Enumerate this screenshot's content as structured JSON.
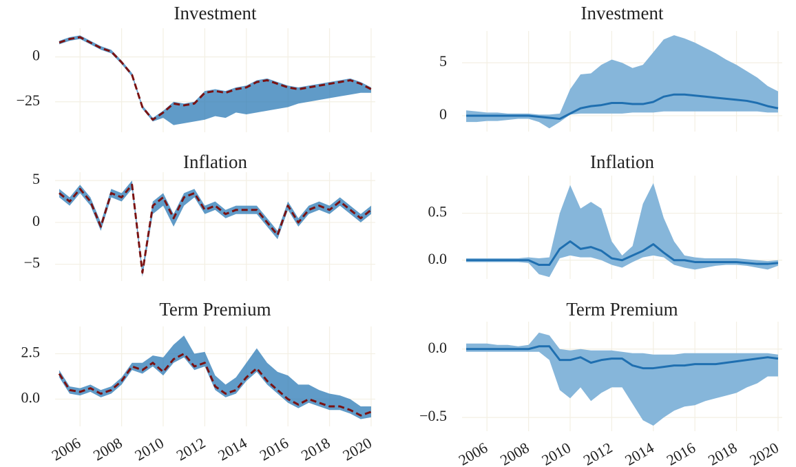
{
  "chart_data": [
    {
      "type": "line",
      "title": "Investment",
      "x": [
        2005,
        2005.5,
        2006,
        2006.5,
        2007,
        2007.5,
        2008,
        2008.5,
        2009,
        2009.5,
        2010,
        2010.5,
        2011,
        2011.5,
        2012,
        2012.5,
        2013,
        2013.5,
        2014,
        2014.5,
        2015,
        2015.5,
        2016,
        2016.5,
        2017,
        2017.5,
        2018,
        2018.5,
        2019,
        2019.5,
        2020
      ],
      "xlim": [
        2004.8,
        2020.2
      ],
      "xticks": [
        2006,
        2008,
        2010,
        2012,
        2014,
        2016,
        2018,
        2020
      ],
      "ylim": [
        -42,
        16
      ],
      "yticks": [
        0,
        {
          "value": -25,
          "label": "−25"
        }
      ],
      "grid": true,
      "band": {
        "color": "#2b79b6",
        "lower": [
          7,
          9,
          10,
          7,
          4,
          2,
          -4,
          -11,
          -29,
          -36,
          -34,
          -38,
          -37,
          -36,
          -35,
          -33,
          -34,
          -31,
          -32,
          -31,
          -30,
          -29,
          -28,
          -26,
          -25,
          -24,
          -23,
          -22,
          -21,
          -20,
          -20
        ],
        "upper": [
          9,
          11,
          12,
          9,
          6,
          4,
          -2,
          -9,
          -27,
          -34,
          -30,
          -25,
          -26,
          -25,
          -19,
          -18,
          -19,
          -17,
          -16,
          -13,
          -12,
          -14,
          -16,
          -17,
          -16,
          -15,
          -14,
          -13,
          -12,
          -14,
          -17
        ]
      },
      "series": [
        {
          "color": "#7a1212",
          "dashed": true,
          "values": [
            8,
            10,
            11,
            8,
            5,
            3,
            -3,
            -10,
            -28,
            -35,
            -31,
            -26,
            -27,
            -26,
            -20,
            -19,
            -20,
            -18,
            -17,
            -14,
            -13,
            -15,
            -17,
            -18,
            -17,
            -16,
            -15,
            -14,
            -13,
            -15,
            -18
          ]
        }
      ]
    },
    {
      "type": "line",
      "title": "Investment",
      "x": [
        2005,
        2005.5,
        2006,
        2006.5,
        2007,
        2007.5,
        2008,
        2008.5,
        2009,
        2009.5,
        2010,
        2010.5,
        2011,
        2011.5,
        2012,
        2012.5,
        2013,
        2013.5,
        2014,
        2014.5,
        2015,
        2015.5,
        2016,
        2016.5,
        2017,
        2017.5,
        2018,
        2018.5,
        2019,
        2019.5,
        2020
      ],
      "xlim": [
        2004.8,
        2020.2
      ],
      "xticks": [
        2006,
        2008,
        2010,
        2012,
        2014,
        2016,
        2018,
        2020
      ],
      "ylim": [
        -1.5,
        8
      ],
      "yticks": [
        5,
        0
      ],
      "grid": true,
      "band": {
        "color": "#86b6da",
        "lower": [
          -0.6,
          -0.6,
          -0.5,
          -0.5,
          -0.4,
          -0.3,
          -0.3,
          -0.6,
          -1.2,
          -0.6,
          0.1,
          0.2,
          0.2,
          0.2,
          0.2,
          0.2,
          0.3,
          0.3,
          0.3,
          0.4,
          0.4,
          0.4,
          0.4,
          0.4,
          0.4,
          0.4,
          0.4,
          0.4,
          0.4,
          0.3,
          0.3
        ],
        "upper": [
          0.5,
          0.4,
          0.3,
          0.3,
          0.2,
          0.2,
          0.2,
          0.1,
          0.1,
          0.2,
          2.5,
          3.9,
          4.0,
          4.8,
          5.3,
          5.0,
          4.5,
          4.8,
          6.0,
          7.2,
          7.6,
          7.3,
          6.9,
          6.4,
          5.9,
          5.3,
          4.8,
          4.2,
          3.6,
          2.8,
          2.3
        ]
      },
      "series": [
        {
          "color": "#1f6fb0",
          "values": [
            0,
            0,
            0,
            0,
            0,
            0,
            0,
            -0.1,
            -0.2,
            -0.3,
            0.2,
            0.7,
            0.9,
            1.0,
            1.2,
            1.2,
            1.1,
            1.1,
            1.3,
            1.8,
            2.0,
            2.0,
            1.9,
            1.8,
            1.7,
            1.6,
            1.5,
            1.4,
            1.2,
            0.9,
            0.7
          ]
        }
      ]
    },
    {
      "type": "line",
      "title": "Inflation",
      "x": [
        2005,
        2005.5,
        2006,
        2006.5,
        2007,
        2007.5,
        2008,
        2008.5,
        2009,
        2009.5,
        2010,
        2010.5,
        2011,
        2011.5,
        2012,
        2012.5,
        2013,
        2013.5,
        2014,
        2014.5,
        2015,
        2015.5,
        2016,
        2016.5,
        2017,
        2017.5,
        2018,
        2018.5,
        2019,
        2019.5,
        2020
      ],
      "xlim": [
        2004.8,
        2020.2
      ],
      "xticks": [
        2006,
        2008,
        2010,
        2012,
        2014,
        2016,
        2018,
        2020
      ],
      "ylim": [
        -7,
        6
      ],
      "yticks": [
        5,
        0,
        {
          "value": -5,
          "label": "−5"
        }
      ],
      "grid": true,
      "band": {
        "color": "#2b79b6",
        "lower": [
          3,
          2,
          3.5,
          2,
          -1,
          3,
          2.5,
          4,
          -6.5,
          1,
          2,
          -0.5,
          2,
          3,
          1,
          1.5,
          0.5,
          1,
          1,
          1,
          -0.5,
          -2,
          1.5,
          -0.5,
          1,
          1.5,
          1,
          2,
          1,
          0,
          1
        ],
        "upper": [
          4,
          3,
          4.5,
          3,
          0,
          4,
          3.5,
          5,
          -5.5,
          2.5,
          3.5,
          1,
          3.5,
          4,
          2,
          2.5,
          1.5,
          2,
          2,
          2,
          0.5,
          -1,
          2.5,
          0.5,
          2,
          2.5,
          2,
          3,
          2,
          1,
          2
        ]
      },
      "series": [
        {
          "color": "#7a1212",
          "dashed": true,
          "values": [
            3.5,
            2.5,
            4,
            2.5,
            -0.5,
            3.5,
            3,
            4.5,
            -6,
            2,
            3,
            0.5,
            3,
            3.5,
            1.5,
            2,
            1,
            1.5,
            1.5,
            1.5,
            0,
            -1.5,
            2,
            0,
            1.5,
            2,
            1.5,
            2.5,
            1.5,
            0.5,
            1.5
          ]
        }
      ]
    },
    {
      "type": "line",
      "title": "Inflation",
      "x": [
        2005,
        2005.5,
        2006,
        2006.5,
        2007,
        2007.5,
        2008,
        2008.5,
        2009,
        2009.5,
        2010,
        2010.5,
        2011,
        2011.5,
        2012,
        2012.5,
        2013,
        2013.5,
        2014,
        2014.5,
        2015,
        2015.5,
        2016,
        2016.5,
        2017,
        2017.5,
        2018,
        2018.5,
        2019,
        2019.5,
        2020
      ],
      "xlim": [
        2004.8,
        2020.2
      ],
      "xticks": [
        2006,
        2008,
        2010,
        2012,
        2014,
        2016,
        2018,
        2020
      ],
      "ylim": [
        -0.2,
        0.9
      ],
      "yticks": [
        0.5,
        {
          "value": 0,
          "label": "0.0"
        }
      ],
      "grid": true,
      "band": {
        "color": "#86b6da",
        "lower": [
          -0.02,
          -0.02,
          -0.02,
          -0.02,
          -0.02,
          -0.02,
          -0.03,
          -0.15,
          -0.18,
          0.02,
          0.05,
          0.03,
          0.03,
          0,
          -0.05,
          -0.08,
          -0.02,
          0.03,
          0.05,
          0.03,
          -0.05,
          -0.08,
          -0.1,
          -0.08,
          -0.06,
          -0.05,
          -0.05,
          -0.06,
          -0.08,
          -0.1,
          -0.06
        ],
        "upper": [
          0.02,
          0.02,
          0.02,
          0.02,
          0.02,
          0.02,
          0.03,
          0.02,
          0.03,
          0.5,
          0.8,
          0.55,
          0.62,
          0.55,
          0.2,
          0.05,
          0.15,
          0.6,
          0.82,
          0.45,
          0.2,
          0.05,
          0.03,
          0.02,
          0.02,
          0.02,
          0.02,
          0.01,
          0,
          -0.01,
          0
        ]
      },
      "series": [
        {
          "color": "#1f6fb0",
          "values": [
            0,
            0,
            0,
            0,
            0,
            0,
            0,
            -0.05,
            -0.05,
            0.12,
            0.2,
            0.12,
            0.14,
            0.1,
            0.02,
            0,
            0.05,
            0.1,
            0.17,
            0.08,
            0,
            0,
            -0.02,
            -0.02,
            -0.02,
            -0.02,
            -0.02,
            -0.03,
            -0.04,
            -0.04,
            -0.03
          ]
        }
      ]
    },
    {
      "type": "line",
      "title": "Term Premium",
      "x": [
        2005,
        2005.5,
        2006,
        2006.5,
        2007,
        2007.5,
        2008,
        2008.5,
        2009,
        2009.5,
        2010,
        2010.5,
        2011,
        2011.5,
        2012,
        2012.5,
        2013,
        2013.5,
        2014,
        2014.5,
        2015,
        2015.5,
        2016,
        2016.5,
        2017,
        2017.5,
        2018,
        2018.5,
        2019,
        2019.5,
        2020
      ],
      "xlim": [
        2004.8,
        2020.2
      ],
      "xticks": [
        2006,
        2008,
        2010,
        2012,
        2014,
        2016,
        2018,
        2020
      ],
      "ylim": [
        -1.5,
        4
      ],
      "yticks": [
        2.5,
        {
          "value": 0,
          "label": "0.0"
        }
      ],
      "grid": true,
      "band": {
        "color": "#2b79b6",
        "lower": [
          1.2,
          0.3,
          0.2,
          0.4,
          0.1,
          0.3,
          0.8,
          1.6,
          1.4,
          1.8,
          1.3,
          2,
          2.3,
          1.6,
          1.8,
          0.5,
          0.1,
          0.3,
          1,
          1.5,
          0.8,
          0.3,
          -0.2,
          -0.5,
          -0.2,
          -0.4,
          -0.6,
          -0.6,
          -0.8,
          -1.1,
          -1
        ],
        "upper": [
          1.6,
          0.7,
          0.6,
          0.8,
          0.5,
          0.7,
          1.2,
          2,
          2,
          2.4,
          2.3,
          3,
          3.5,
          2.5,
          2.6,
          1.3,
          0.8,
          1.2,
          2,
          2.8,
          2,
          1.5,
          1.3,
          0.8,
          0.8,
          0.5,
          0.3,
          0.2,
          0,
          -0.4,
          -0.4
        ]
      },
      "series": [
        {
          "color": "#7a1212",
          "dashed": true,
          "values": [
            1.4,
            0.5,
            0.4,
            0.6,
            0.3,
            0.5,
            1,
            1.8,
            1.6,
            2,
            1.5,
            2.2,
            2.5,
            1.8,
            2,
            0.7,
            0.3,
            0.5,
            1.2,
            1.7,
            1,
            0.5,
            0,
            -0.3,
            0,
            -0.2,
            -0.4,
            -0.4,
            -0.6,
            -0.9,
            -0.7
          ]
        }
      ]
    },
    {
      "type": "line",
      "title": "Term Premium",
      "x": [
        2005,
        2005.5,
        2006,
        2006.5,
        2007,
        2007.5,
        2008,
        2008.5,
        2009,
        2009.5,
        2010,
        2010.5,
        2011,
        2011.5,
        2012,
        2012.5,
        2013,
        2013.5,
        2014,
        2014.5,
        2015,
        2015.5,
        2016,
        2016.5,
        2017,
        2017.5,
        2018,
        2018.5,
        2019,
        2019.5,
        2020
      ],
      "xlim": [
        2004.8,
        2020.2
      ],
      "xticks": [
        2006,
        2008,
        2010,
        2012,
        2014,
        2016,
        2018,
        2020
      ],
      "ylim": [
        -0.6,
        0.2
      ],
      "yticks": [
        {
          "value": 0,
          "label": "0.0"
        },
        {
          "value": -0.5,
          "label": "−0.5"
        }
      ],
      "grid": true,
      "band": {
        "color": "#86b6da",
        "lower": [
          -0.02,
          -0.02,
          -0.02,
          -0.02,
          -0.02,
          -0.02,
          -0.02,
          -0.02,
          -0.08,
          -0.3,
          -0.36,
          -0.28,
          -0.38,
          -0.32,
          -0.28,
          -0.28,
          -0.4,
          -0.52,
          -0.56,
          -0.5,
          -0.45,
          -0.42,
          -0.41,
          -0.38,
          -0.36,
          -0.34,
          -0.32,
          -0.28,
          -0.25,
          -0.2,
          -0.2
        ],
        "upper": [
          0.04,
          0.04,
          0.04,
          0.03,
          0.03,
          0.02,
          0.03,
          0.12,
          0.1,
          0,
          -0.01,
          0,
          -0.01,
          -0.01,
          -0.01,
          -0.02,
          -0.03,
          -0.03,
          -0.04,
          -0.04,
          -0.04,
          -0.03,
          -0.03,
          -0.03,
          -0.03,
          -0.03,
          -0.03,
          -0.03,
          -0.03,
          -0.03,
          -0.04
        ]
      },
      "series": [
        {
          "color": "#1f6fb0",
          "values": [
            0,
            0,
            0,
            0,
            0,
            0,
            0,
            0.02,
            0.02,
            -0.08,
            -0.08,
            -0.06,
            -0.1,
            -0.08,
            -0.07,
            -0.07,
            -0.12,
            -0.14,
            -0.14,
            -0.13,
            -0.12,
            -0.12,
            -0.11,
            -0.11,
            -0.11,
            -0.1,
            -0.09,
            -0.08,
            -0.07,
            -0.06,
            -0.07
          ]
        }
      ]
    }
  ]
}
